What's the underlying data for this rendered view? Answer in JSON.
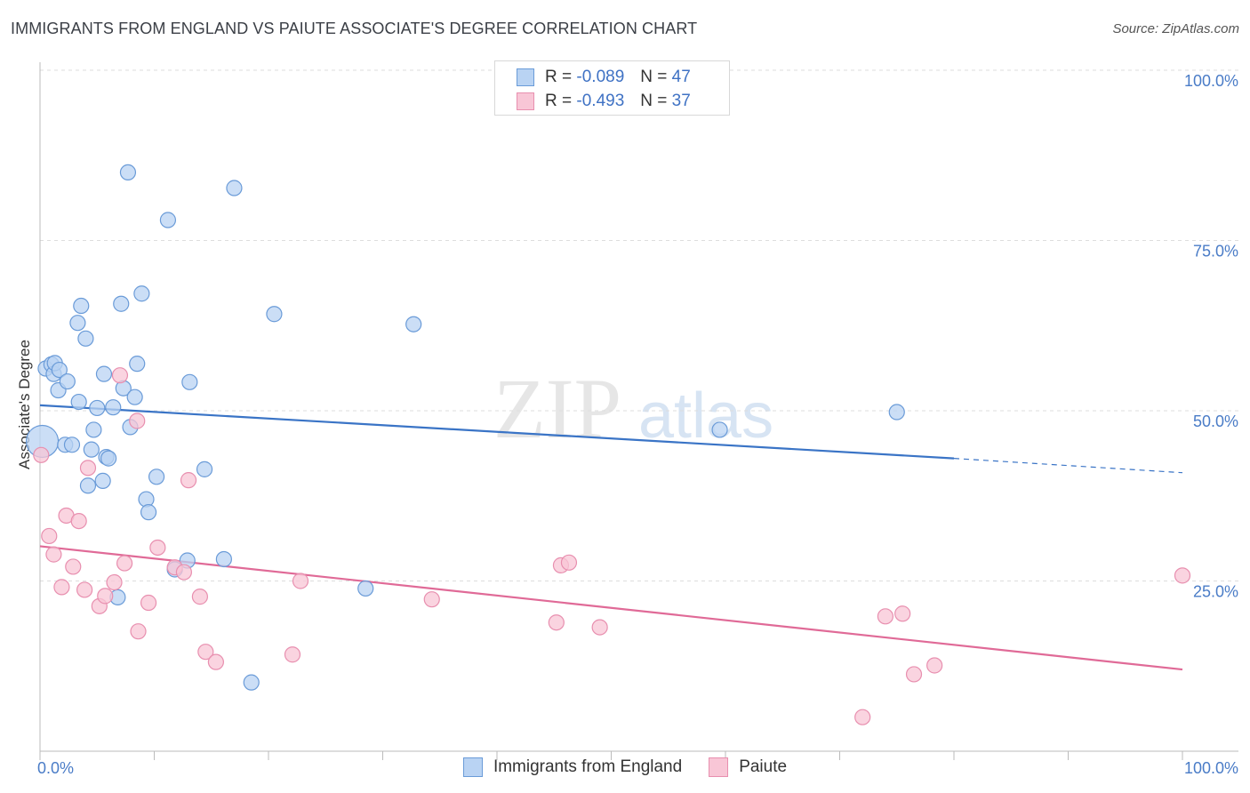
{
  "header": {
    "title": "IMMIGRANTS FROM ENGLAND VS PAIUTE ASSOCIATE'S DEGREE CORRELATION CHART",
    "source": "Source: ZipAtlas.com"
  },
  "watermark": {
    "zip": "ZIP",
    "atlas": "atlas"
  },
  "stats": [
    {
      "r_label": "R =",
      "r_value": "-0.089",
      "n_label": "N =",
      "n_value": "47"
    },
    {
      "r_label": "R =",
      "r_value": "-0.493",
      "n_label": "N =",
      "n_value": "37"
    }
  ],
  "legend": {
    "items": [
      "Immigrants from England",
      "Paiute"
    ]
  },
  "colors": {
    "england_fill": "#b9d3f3",
    "england_stroke": "#6a9bd8",
    "england_line": "#3a74c6",
    "paiute_fill": "#f8c6d6",
    "paiute_stroke": "#e88faf",
    "paiute_line": "#e06a97",
    "tick": "#4a7cc7",
    "grid": "#dddddd"
  },
  "chart_data": {
    "type": "scatter",
    "title": "IMMIGRANTS FROM ENGLAND VS PAIUTE ASSOCIATE'S DEGREE CORRELATION CHART",
    "xlabel": "",
    "ylabel": "Associate's Degree",
    "xlim": [
      0,
      100
    ],
    "ylim": [
      0,
      100
    ],
    "x_tick_labels": [
      "0.0%",
      "100.0%"
    ],
    "y_ticks": [
      25,
      50,
      75,
      100
    ],
    "y_tick_labels": [
      "25.0%",
      "50.0%",
      "75.0%",
      "100.0%"
    ],
    "grid": true,
    "legend_position": "bottom",
    "series": [
      {
        "name": "Immigrants from England",
        "points": [
          [
            0.2,
            45.5
          ],
          [
            0.5,
            56.2
          ],
          [
            1.0,
            56.8
          ],
          [
            1.2,
            55.4
          ],
          [
            1.3,
            57.0
          ],
          [
            1.7,
            56.0
          ],
          [
            1.6,
            53.0
          ],
          [
            2.4,
            54.3
          ],
          [
            2.2,
            45.0
          ],
          [
            2.8,
            45.0
          ],
          [
            3.3,
            62.9
          ],
          [
            3.6,
            65.4
          ],
          [
            3.4,
            51.3
          ],
          [
            4.0,
            60.6
          ],
          [
            4.2,
            39.0
          ],
          [
            4.5,
            44.3
          ],
          [
            4.7,
            47.2
          ],
          [
            5.0,
            50.4
          ],
          [
            5.5,
            39.7
          ],
          [
            5.6,
            55.4
          ],
          [
            5.8,
            43.2
          ],
          [
            6.0,
            43.0
          ],
          [
            6.4,
            50.5
          ],
          [
            6.8,
            22.6
          ],
          [
            7.1,
            65.7
          ],
          [
            7.3,
            53.3
          ],
          [
            7.7,
            85.0
          ],
          [
            7.9,
            47.6
          ],
          [
            8.3,
            52.0
          ],
          [
            8.5,
            56.9
          ],
          [
            8.9,
            67.2
          ],
          [
            9.3,
            37.0
          ],
          [
            9.5,
            35.1
          ],
          [
            10.2,
            40.3
          ],
          [
            11.2,
            78.0
          ],
          [
            11.8,
            26.7
          ],
          [
            12.9,
            28.0
          ],
          [
            13.1,
            54.2
          ],
          [
            14.4,
            41.4
          ],
          [
            16.1,
            28.2
          ],
          [
            17.0,
            82.7
          ],
          [
            18.5,
            10.1
          ],
          [
            20.5,
            64.2
          ],
          [
            28.5,
            23.9
          ],
          [
            32.7,
            62.7
          ],
          [
            59.5,
            47.2
          ],
          [
            75.0,
            49.8
          ]
        ],
        "trend": {
          "x": [
            0,
            80,
            100
          ],
          "y": [
            50.8,
            43.0,
            40.9
          ]
        }
      },
      {
        "name": "Paiute",
        "points": [
          [
            0.1,
            43.5
          ],
          [
            0.8,
            31.6
          ],
          [
            1.2,
            28.9
          ],
          [
            1.9,
            24.1
          ],
          [
            2.3,
            34.6
          ],
          [
            2.9,
            27.1
          ],
          [
            3.4,
            33.8
          ],
          [
            3.9,
            23.7
          ],
          [
            4.2,
            41.6
          ],
          [
            5.2,
            21.3
          ],
          [
            5.7,
            22.8
          ],
          [
            6.5,
            24.8
          ],
          [
            7.0,
            55.2
          ],
          [
            7.4,
            27.6
          ],
          [
            8.5,
            48.5
          ],
          [
            8.6,
            17.6
          ],
          [
            9.5,
            21.8
          ],
          [
            10.3,
            29.9
          ],
          [
            11.8,
            27.0
          ],
          [
            12.6,
            26.3
          ],
          [
            13.0,
            39.8
          ],
          [
            14.0,
            22.7
          ],
          [
            14.5,
            14.6
          ],
          [
            15.4,
            13.1
          ],
          [
            22.1,
            14.2
          ],
          [
            22.8,
            25.0
          ],
          [
            34.3,
            22.3
          ],
          [
            45.2,
            18.9
          ],
          [
            45.6,
            27.3
          ],
          [
            46.3,
            27.7
          ],
          [
            49.0,
            18.2
          ],
          [
            72.0,
            5.0
          ],
          [
            74.0,
            19.8
          ],
          [
            75.5,
            20.2
          ],
          [
            76.5,
            11.3
          ],
          [
            78.3,
            12.6
          ],
          [
            100.0,
            25.8
          ]
        ],
        "trend": {
          "x": [
            0,
            100
          ],
          "y": [
            30.1,
            12.0
          ]
        }
      }
    ]
  }
}
